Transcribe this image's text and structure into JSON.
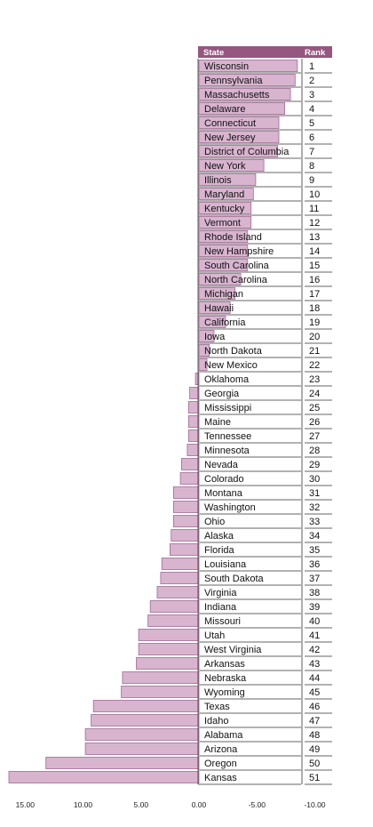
{
  "chart_data": {
    "type": "bar",
    "orientation": "horizontal",
    "columns": [
      "State",
      "Rank"
    ],
    "states": [
      "Wisconsin",
      "Pennsylvania",
      "Massachusetts",
      "Delaware",
      "Connecticut",
      "New Jersey",
      "District of Columbia",
      "New York",
      "Illinois",
      "Maryland",
      "Kentucky",
      "Vermont",
      "Rhode Island",
      "New Hampshire",
      "South Carolina",
      "North Carolina",
      "Michigan",
      "Hawaii",
      "California",
      "Iowa",
      "North Dakota",
      "New Mexico",
      "Oklahoma",
      "Georgia",
      "Mississippi",
      "Maine",
      "Tennessee",
      "Minnesota",
      "Nevada",
      "Colorado",
      "Montana",
      "Washington",
      "Ohio",
      "Alaska",
      "Florida",
      "Louisiana",
      "South Dakota",
      "Virginia",
      "Indiana",
      "Missouri",
      "Utah",
      "West Virginia",
      "Arkansas",
      "Nebraska",
      "Wyoming",
      "Texas",
      "Idaho",
      "Alabama",
      "Arizona",
      "Oregon",
      "Kansas"
    ],
    "ranks": [
      "1",
      "2",
      "3",
      "4",
      "5",
      "6",
      "7",
      "8",
      "9",
      "10",
      "11",
      "12",
      "13",
      "14",
      "15",
      "16",
      "17",
      "18",
      "19",
      "20",
      "21",
      "22",
      "23",
      "24",
      "25",
      "26",
      "27",
      "28",
      "29",
      "30",
      "31",
      "32",
      "33",
      "34",
      "35",
      "36",
      "37",
      "38",
      "39",
      "40",
      "41",
      "42",
      "43",
      "44",
      "45",
      "46",
      "47",
      "48",
      "49",
      "50",
      "51"
    ],
    "values": [
      -8.5,
      -8.3,
      -7.9,
      -7.4,
      -6.9,
      -6.9,
      -6.8,
      -5.6,
      -4.9,
      -4.7,
      -4.5,
      -4.5,
      -4.2,
      -4.2,
      -4.2,
      -3.6,
      -3.1,
      -2.7,
      -2.3,
      -1.3,
      -0.9,
      -0.7,
      0.3,
      0.8,
      0.9,
      0.9,
      0.9,
      1.0,
      1.5,
      1.6,
      2.2,
      2.2,
      2.2,
      2.4,
      2.5,
      3.2,
      3.3,
      3.6,
      4.2,
      4.4,
      5.2,
      5.2,
      5.4,
      6.6,
      6.7,
      9.1,
      9.3,
      9.8,
      9.8,
      13.2,
      16.4
    ],
    "x_ticks": [
      "15.00",
      "10.00",
      "5.00",
      "0.00",
      "-5.00",
      "-10.00"
    ],
    "xlim": [
      16.7,
      -10.1
    ],
    "bar_color": "#d8b4cf",
    "bar_border": "#a06a93",
    "header_color": "#95577f"
  }
}
